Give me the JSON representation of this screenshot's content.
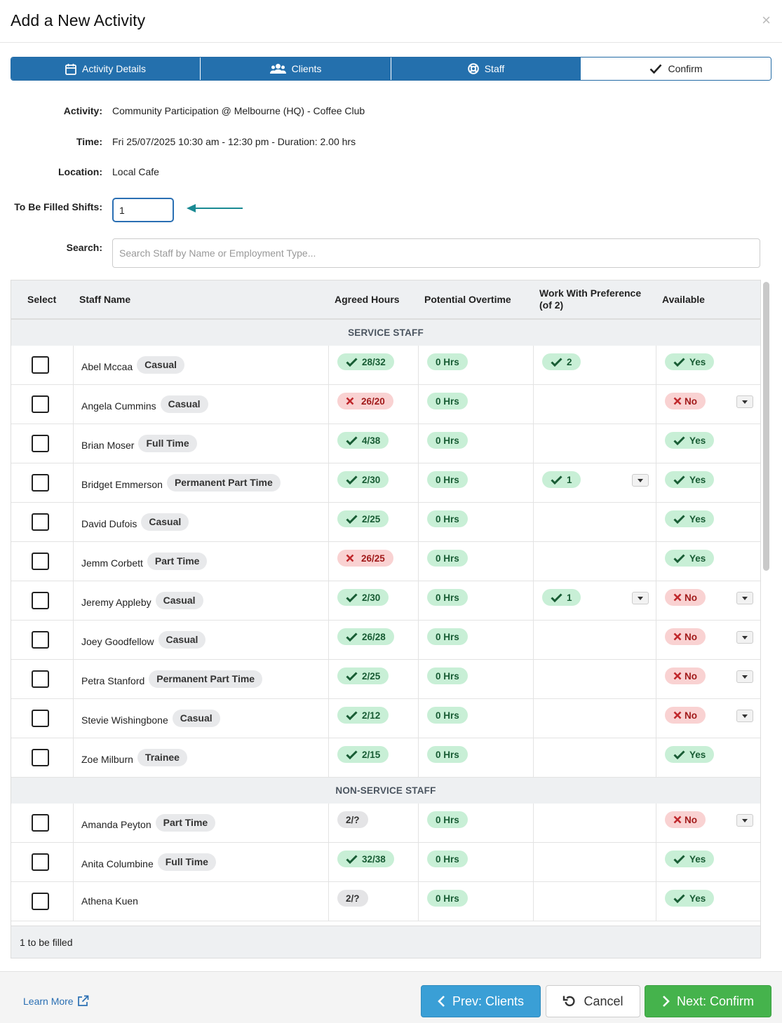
{
  "dialog": {
    "title": "Add a New Activity",
    "close_glyph": "×"
  },
  "steps": [
    {
      "label": "Activity Details",
      "icon": "calendar-icon"
    },
    {
      "label": "Clients",
      "icon": "users-icon"
    },
    {
      "label": "Staff",
      "icon": "lifebuoy-icon"
    },
    {
      "label": "Confirm",
      "icon": "check-icon"
    }
  ],
  "details": {
    "activity_label": "Activity:",
    "activity_value": "Community Participation @ Melbourne (HQ) - Coffee Club",
    "time_label": "Time:",
    "time_value": "Fri 25/07/2025 10:30 am - 12:30 pm - Duration: 2.00 hrs",
    "location_label": "Location:",
    "location_value": "Local Cafe",
    "shifts_label": "To Be Filled Shifts:",
    "shifts_value": "1",
    "search_label": "Search:",
    "search_placeholder": "Search Staff by Name or Employment Type..."
  },
  "table": {
    "headers": {
      "select": "Select",
      "name": "Staff Name",
      "agreed": "Agreed Hours",
      "overtime": "Potential Overtime",
      "preference": "Work With Preference (of 2)",
      "available": "Available"
    },
    "groups": [
      {
        "title": "SERVICE STAFF",
        "rows": [
          {
            "name": "Abel Mccaa",
            "type": "Casual",
            "agreed": "28/32",
            "agreed_ok": true,
            "overtime": "0 Hrs",
            "pref": "2",
            "pref_menu": false,
            "available": "Yes",
            "avail_ok": true
          },
          {
            "name": "Angela Cummins",
            "type": "Casual",
            "agreed": "26/20",
            "agreed_ok": false,
            "overtime": "0 Hrs",
            "pref": "",
            "pref_menu": false,
            "available": "No",
            "avail_ok": false
          },
          {
            "name": "Brian Moser",
            "type": "Full Time",
            "agreed": "4/38",
            "agreed_ok": true,
            "overtime": "0 Hrs",
            "pref": "",
            "pref_menu": false,
            "available": "Yes",
            "avail_ok": true
          },
          {
            "name": "Bridget Emmerson",
            "type": "Permanent Part Time",
            "agreed": "2/30",
            "agreed_ok": true,
            "overtime": "0 Hrs",
            "pref": "1",
            "pref_menu": true,
            "available": "Yes",
            "avail_ok": true
          },
          {
            "name": "David Dufois",
            "type": "Casual",
            "agreed": "2/25",
            "agreed_ok": true,
            "overtime": "0 Hrs",
            "pref": "",
            "pref_menu": false,
            "available": "Yes",
            "avail_ok": true
          },
          {
            "name": "Jemm Corbett",
            "type": "Part Time",
            "agreed": "26/25",
            "agreed_ok": false,
            "overtime": "0 Hrs",
            "pref": "",
            "pref_menu": false,
            "available": "Yes",
            "avail_ok": true
          },
          {
            "name": "Jeremy Appleby",
            "type": "Casual",
            "agreed": "2/30",
            "agreed_ok": true,
            "overtime": "0 Hrs",
            "pref": "1",
            "pref_menu": true,
            "available": "No",
            "avail_ok": false
          },
          {
            "name": "Joey Goodfellow",
            "type": "Casual",
            "agreed": "26/28",
            "agreed_ok": true,
            "overtime": "0 Hrs",
            "pref": "",
            "pref_menu": false,
            "available": "No",
            "avail_ok": false
          },
          {
            "name": "Petra Stanford",
            "type": "Permanent Part Time",
            "agreed": "2/25",
            "agreed_ok": true,
            "overtime": "0 Hrs",
            "pref": "",
            "pref_menu": false,
            "available": "No",
            "avail_ok": false
          },
          {
            "name": "Stevie Wishingbone",
            "type": "Casual",
            "agreed": "2/12",
            "agreed_ok": true,
            "overtime": "0 Hrs",
            "pref": "",
            "pref_menu": false,
            "available": "No",
            "avail_ok": false
          },
          {
            "name": "Zoe Milburn",
            "type": "Trainee",
            "agreed": "2/15",
            "agreed_ok": true,
            "overtime": "0 Hrs",
            "pref": "",
            "pref_menu": false,
            "available": "Yes",
            "avail_ok": true
          }
        ]
      },
      {
        "title": "NON-SERVICE STAFF",
        "rows": [
          {
            "name": "Amanda Peyton",
            "type": "Part Time",
            "agreed": "2/?",
            "agreed_ok": null,
            "overtime": "0 Hrs",
            "pref": "",
            "pref_menu": false,
            "available": "No",
            "avail_ok": false
          },
          {
            "name": "Anita Columbine",
            "type": "Full Time",
            "agreed": "32/38",
            "agreed_ok": true,
            "overtime": "0 Hrs",
            "pref": "",
            "pref_menu": false,
            "available": "Yes",
            "avail_ok": true
          },
          {
            "name": "Athena Kuen",
            "type": "",
            "agreed": "2/?",
            "agreed_ok": null,
            "overtime": "0 Hrs",
            "pref": "",
            "pref_menu": false,
            "available": "Yes",
            "avail_ok": true
          }
        ]
      }
    ],
    "footer_text": "1 to be filled"
  },
  "footer": {
    "learn_more": "Learn More",
    "prev_label": "Prev: Clients",
    "cancel_label": "Cancel",
    "next_label": "Next: Confirm"
  },
  "colors": {
    "primary": "#2470ad",
    "success": "#45b34c",
    "info": "#3a9fd6",
    "pill_green": "#c8efd6",
    "pill_red": "#f9d2d2"
  }
}
